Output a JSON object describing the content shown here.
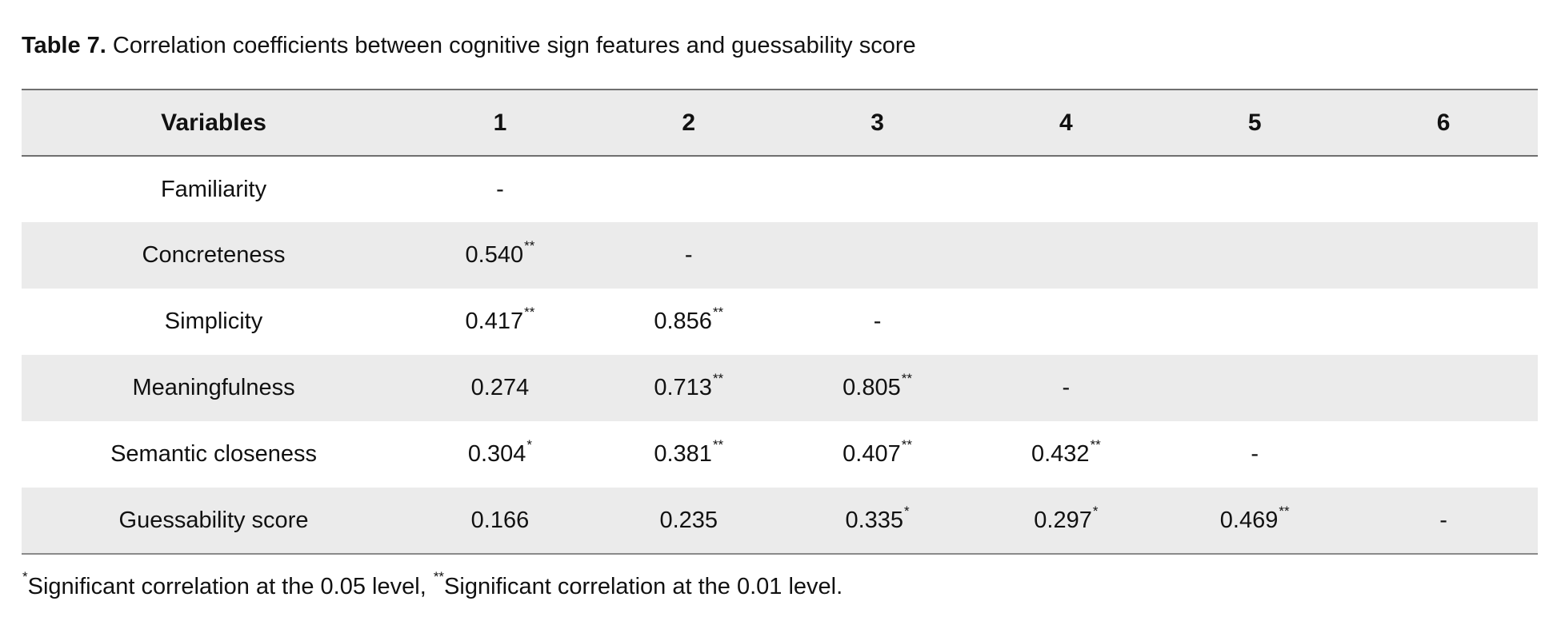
{
  "caption": {
    "label": "Table 7.",
    "text": " Correlation coefficients between cognitive sign features and guessability score"
  },
  "table": {
    "header": [
      "Variables",
      "1",
      "2",
      "3",
      "4",
      "5",
      "6"
    ],
    "rows": [
      {
        "variable": "Familiarity",
        "cells": [
          {
            "v": "-",
            "sig": ""
          },
          {
            "v": "",
            "sig": ""
          },
          {
            "v": "",
            "sig": ""
          },
          {
            "v": "",
            "sig": ""
          },
          {
            "v": "",
            "sig": ""
          },
          {
            "v": "",
            "sig": ""
          }
        ]
      },
      {
        "variable": "Concreteness",
        "cells": [
          {
            "v": "0.540",
            "sig": "**"
          },
          {
            "v": "-",
            "sig": ""
          },
          {
            "v": "",
            "sig": ""
          },
          {
            "v": "",
            "sig": ""
          },
          {
            "v": "",
            "sig": ""
          },
          {
            "v": "",
            "sig": ""
          }
        ]
      },
      {
        "variable": "Simplicity",
        "cells": [
          {
            "v": "0.417",
            "sig": "**"
          },
          {
            "v": "0.856",
            "sig": "**"
          },
          {
            "v": "-",
            "sig": ""
          },
          {
            "v": "",
            "sig": ""
          },
          {
            "v": "",
            "sig": ""
          },
          {
            "v": "",
            "sig": ""
          }
        ]
      },
      {
        "variable": "Meaningfulness",
        "cells": [
          {
            "v": "0.274",
            "sig": ""
          },
          {
            "v": "0.713",
            "sig": "**"
          },
          {
            "v": "0.805",
            "sig": "**"
          },
          {
            "v": "-",
            "sig": ""
          },
          {
            "v": "",
            "sig": ""
          },
          {
            "v": "",
            "sig": ""
          }
        ]
      },
      {
        "variable": "Semantic closeness",
        "cells": [
          {
            "v": "0.304",
            "sig": "*"
          },
          {
            "v": "0.381",
            "sig": "**"
          },
          {
            "v": "0.407",
            "sig": "**"
          },
          {
            "v": "0.432",
            "sig": "**"
          },
          {
            "v": "-",
            "sig": ""
          },
          {
            "v": "",
            "sig": ""
          }
        ]
      },
      {
        "variable": "Guessability score",
        "cells": [
          {
            "v": "0.166",
            "sig": ""
          },
          {
            "v": "0.235",
            "sig": ""
          },
          {
            "v": "0.335",
            "sig": "*"
          },
          {
            "v": "0.297",
            "sig": "*"
          },
          {
            "v": "0.469",
            "sig": "**"
          },
          {
            "v": "-",
            "sig": ""
          }
        ]
      }
    ]
  },
  "footnote": {
    "mark1": "*",
    "text1": "Significant correlation at the 0.05 level, ",
    "mark2": "**",
    "text2": "Significant correlation at the 0.01 level."
  },
  "colors": {
    "shaded_row": "#ebebeb",
    "rule": "#6f6f6f",
    "text": "#111111"
  }
}
